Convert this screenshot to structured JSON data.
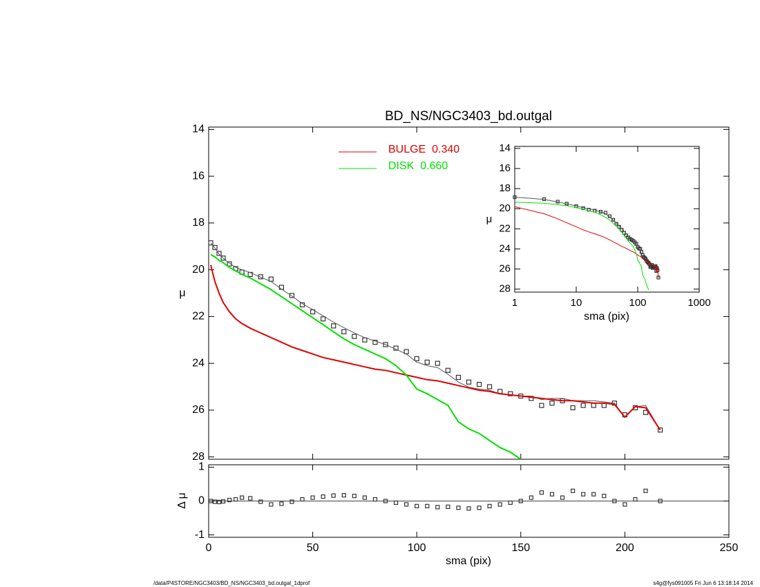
{
  "chart_data": [
    {
      "type": "line",
      "title": "BD_NS/NGC3403_bd.outgal",
      "ylabel": "μ",
      "x": [
        1,
        3,
        5,
        7,
        10,
        13,
        16,
        20,
        25,
        30,
        35,
        40,
        45,
        50,
        55,
        60,
        65,
        70,
        75,
        80,
        85,
        90,
        95,
        100,
        105,
        110,
        115,
        120,
        125,
        130,
        135,
        140,
        145,
        150,
        155,
        160,
        165,
        170,
        175,
        180,
        185,
        190,
        195,
        200,
        205,
        210,
        217
      ],
      "series": [
        {
          "marker": "square",
          "color": "#333333",
          "values": [
            18.85,
            19.05,
            19.3,
            19.5,
            19.75,
            19.95,
            20.1,
            20.2,
            20.3,
            20.4,
            20.75,
            21.1,
            21.5,
            21.8,
            22.1,
            22.4,
            22.65,
            22.85,
            23.0,
            23.1,
            23.2,
            23.35,
            23.5,
            23.8,
            23.95,
            24.0,
            24.3,
            24.6,
            24.8,
            24.9,
            25.0,
            25.2,
            25.3,
            25.4,
            25.5,
            25.8,
            25.7,
            25.6,
            25.9,
            25.8,
            25.8,
            25.8,
            25.7,
            26.2,
            25.9,
            26.1,
            26.85
          ]
        },
        {
          "color": "#555555",
          "values": [
            18.85,
            19.07,
            19.33,
            19.51,
            19.72,
            19.9,
            20.0,
            20.12,
            20.32,
            20.5,
            20.83,
            21.12,
            21.45,
            21.7,
            21.97,
            22.24,
            22.48,
            22.7,
            22.9,
            23.05,
            23.2,
            23.4,
            23.6,
            23.95,
            24.1,
            24.18,
            24.47,
            24.8,
            25.02,
            25.1,
            25.15,
            25.3,
            25.35,
            25.4,
            25.4,
            25.55,
            25.5,
            25.5,
            25.6,
            25.6,
            25.6,
            25.65,
            25.7,
            26.3,
            25.85,
            25.8,
            26.85
          ]
        },
        {
          "name": "BULGE  0.340",
          "color": "#e00000",
          "values": [
            19.8,
            20.5,
            21.0,
            21.4,
            21.8,
            22.1,
            22.3,
            22.5,
            22.7,
            22.9,
            23.1,
            23.3,
            23.45,
            23.6,
            23.75,
            23.85,
            23.95,
            24.05,
            24.15,
            24.25,
            24.3,
            24.4,
            24.5,
            24.6,
            24.7,
            24.75,
            24.85,
            24.95,
            25.05,
            25.15,
            25.2,
            25.3,
            25.35,
            25.4,
            25.45,
            25.5,
            25.55,
            25.6,
            25.6,
            25.65,
            25.7,
            25.7,
            25.75,
            26.3,
            25.85,
            25.9,
            26.85
          ]
        },
        {
          "name": "DISK  0.660",
          "color": "#00e000",
          "values": [
            19.35,
            19.45,
            19.6,
            19.7,
            19.9,
            20.05,
            20.2,
            20.35,
            20.6,
            20.85,
            21.15,
            21.45,
            21.75,
            22.05,
            22.35,
            22.65,
            22.95,
            23.2,
            23.4,
            23.6,
            23.8,
            24.1,
            24.5,
            25.1,
            25.3,
            25.55,
            25.8,
            26.5,
            26.8,
            27.0,
            27.3,
            27.6,
            27.8,
            28.1,
            null,
            null,
            null,
            null,
            null,
            null,
            null,
            null,
            null,
            null,
            null,
            null,
            null
          ]
        }
      ],
      "xlim": [
        0,
        250
      ],
      "xticks": [
        0,
        50,
        100,
        150,
        200,
        250
      ],
      "ylim": [
        13.9,
        28.1
      ],
      "yticks": [
        14,
        16,
        18,
        20,
        22,
        24,
        26,
        28
      ],
      "y_inverted": true
    },
    {
      "type": "scatter",
      "ylabel": "Δ μ",
      "xlabel": "sma (pix)",
      "values": [
        0,
        -0.02,
        -0.03,
        -0.01,
        0.03,
        0.05,
        0.1,
        0.08,
        -0.02,
        -0.1,
        -0.08,
        -0.02,
        0.05,
        0.1,
        0.13,
        0.16,
        0.17,
        0.15,
        0.1,
        0.05,
        0.0,
        -0.05,
        -0.1,
        -0.15,
        -0.15,
        -0.18,
        -0.17,
        -0.2,
        -0.22,
        -0.2,
        -0.15,
        -0.1,
        -0.05,
        0.0,
        0.1,
        0.25,
        0.2,
        0.1,
        0.3,
        0.2,
        0.2,
        0.15,
        0.0,
        -0.1,
        0.05,
        0.3,
        0.0
      ],
      "xlim": [
        0,
        250
      ],
      "xticks": [
        0,
        50,
        100,
        150,
        200,
        250
      ],
      "ylim": [
        -1.07,
        1.07
      ],
      "yticks": [
        1,
        0,
        -1
      ]
    },
    {
      "type": "line",
      "xlabel": "sma (pix)",
      "ylabel": "μ",
      "log_x": true,
      "xlim": [
        1,
        1000
      ],
      "xticks": [
        1,
        10,
        100,
        1000
      ],
      "ylim": [
        13.8,
        28.3
      ],
      "yticks": [
        14,
        16,
        18,
        20,
        22,
        24,
        26,
        28
      ],
      "y_inverted": true
    }
  ],
  "footer": {
    "left": "/data/P4STORE/NGC3403/BD_NS/NGC3403_bd.outgal_1dprof",
    "right": "s4g@fys091005  Fri Jun  6 13:18:14 2014"
  }
}
